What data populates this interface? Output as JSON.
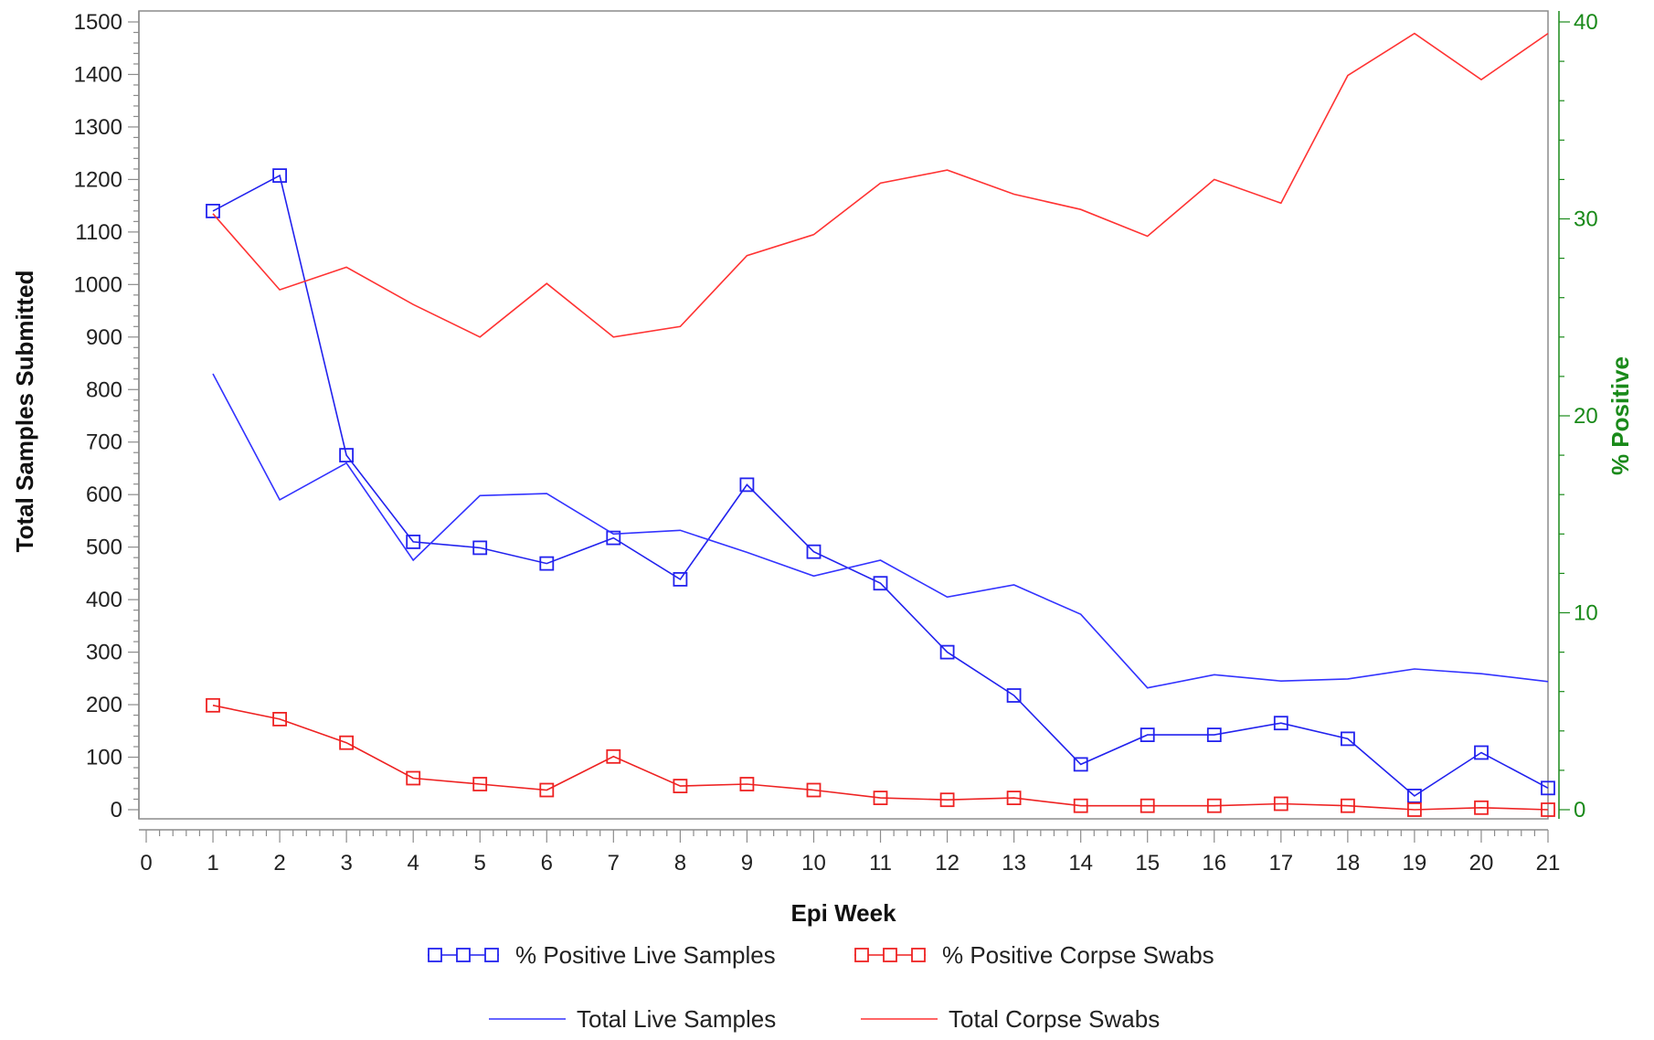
{
  "chart_data": {
    "type": "line",
    "xlabel": "Epi Week",
    "ylabel": "Total Samples Submitted",
    "y2label": "% Positive",
    "x": [
      1,
      2,
      3,
      4,
      5,
      6,
      7,
      8,
      9,
      10,
      11,
      12,
      13,
      14,
      15,
      16,
      17,
      18,
      19,
      20,
      21
    ],
    "xlim": [
      0,
      21
    ],
    "xticks": [
      "0",
      "1",
      "2",
      "3",
      "4",
      "5",
      "6",
      "7",
      "8",
      "9",
      "10",
      "11",
      "12",
      "13",
      "14",
      "15",
      "16",
      "17",
      "18",
      "19",
      "20",
      "21"
    ],
    "ylim": [
      0,
      1500
    ],
    "yticks": [
      "0",
      "100",
      "200",
      "300",
      "400",
      "500",
      "600",
      "700",
      "800",
      "900",
      "1000",
      "1100",
      "1200",
      "1300",
      "1400",
      "1500"
    ],
    "y2lim": [
      0,
      40
    ],
    "y2ticks": [
      "0",
      "10",
      "20",
      "30",
      "40"
    ],
    "series": [
      {
        "name": "% Positive Live Samples",
        "axis": "right",
        "marker": "square",
        "color": "#2222ee",
        "values": [
          30.4,
          32.2,
          18.0,
          13.6,
          13.3,
          12.5,
          13.8,
          11.7,
          16.5,
          13.1,
          11.5,
          8.0,
          5.8,
          2.3,
          3.8,
          3.8,
          4.4,
          3.6,
          0.7,
          2.9,
          1.1
        ]
      },
      {
        "name": "% Positive Corpse Swabs",
        "axis": "right",
        "marker": "square",
        "color": "#ee2222",
        "values": [
          5.3,
          4.6,
          3.4,
          1.6,
          1.3,
          1.0,
          2.7,
          1.2,
          1.3,
          1.0,
          0.6,
          0.5,
          0.6,
          0.2,
          0.2,
          0.2,
          0.3,
          0.2,
          0.0,
          0.1,
          0.0
        ]
      },
      {
        "name": "Total Live Samples",
        "axis": "left",
        "marker": "none",
        "color": "#3333ff",
        "values": [
          830,
          590,
          660,
          475,
          598,
          602,
          525,
          532,
          490,
          445,
          475,
          405,
          428,
          372,
          232,
          257,
          245,
          249,
          268,
          259,
          244
        ]
      },
      {
        "name": "Total Corpse Swabs",
        "axis": "left",
        "marker": "none",
        "color": "#ff3333",
        "values": [
          1135,
          990,
          1033,
          962,
          900,
          1002,
          900,
          920,
          1055,
          1095,
          1193,
          1218,
          1172,
          1143,
          1092,
          1200,
          1155,
          1398,
          1478,
          1390,
          1478
        ]
      }
    ],
    "axis_colors": {
      "left": "#222222",
      "right": "#1a8a1a"
    },
    "legend": {
      "position": "bottom",
      "rows": [
        [
          "% Positive Live Samples",
          "% Positive Corpse Swabs"
        ],
        [
          "Total Live Samples",
          "Total Corpse Swabs"
        ]
      ]
    },
    "grid": false
  }
}
